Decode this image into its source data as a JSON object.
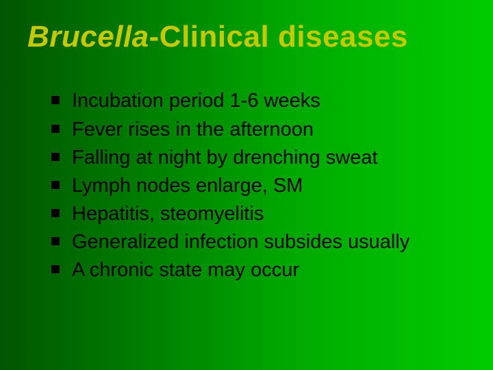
{
  "slide": {
    "title_italic": "Brucella",
    "title_rest": "-Clinical diseases",
    "bullets": [
      "Incubation period 1-6 weeks",
      "Fever rises in the afternoon",
      "Falling at night by drenching sweat",
      "Lymph nodes enlarge, SM",
      "Hepatitis, steomyelitis",
      "Generalized infection subsides usually",
      "A chronic state may occur"
    ],
    "style": {
      "background_gradient": [
        "#005500",
        "#00aa00",
        "#00cc00"
      ],
      "title_color": "#c8c800",
      "title_fontsize": 44,
      "body_color": "#000000",
      "body_fontsize": 29,
      "bullet_marker": "square",
      "bullet_marker_color": "#000000",
      "font_family": "Arial"
    }
  }
}
